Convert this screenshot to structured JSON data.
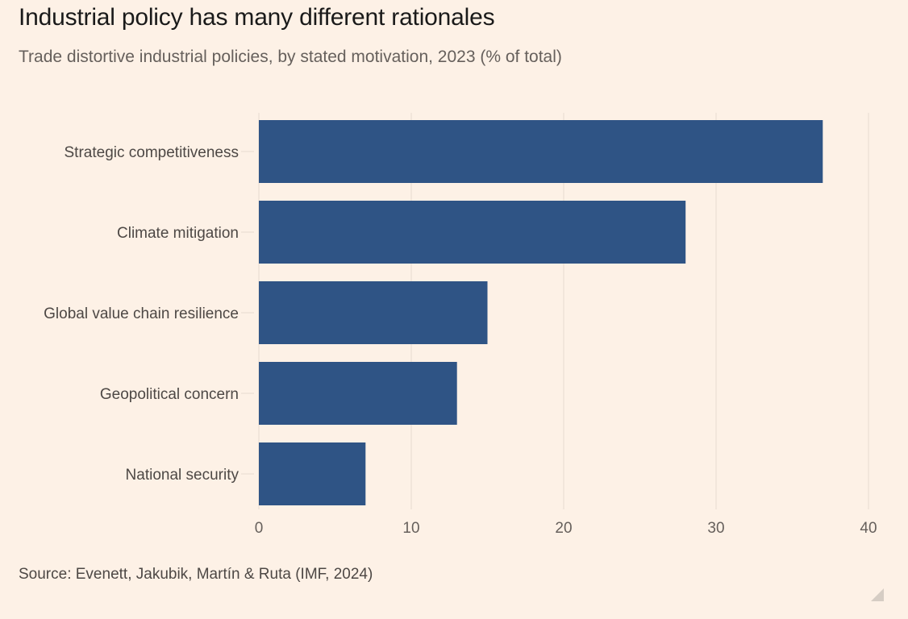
{
  "title": "Industrial policy has many different rationales",
  "subtitle": "Trade distortive industrial policies, by stated motivation, 2023 (% of total)",
  "source": "Source: Evenett, Jakubik, Martín & Ruta (IMF, 2024)",
  "colors": {
    "bar": "#2f5485",
    "grid": "#e6dbd0",
    "background": "#fdf1e6",
    "axis_text": "#66605c"
  },
  "chart_data": {
    "type": "bar",
    "orientation": "horizontal",
    "title": "Industrial policy has many different rationales",
    "subtitle": "Trade distortive industrial policies, by stated motivation, 2023 (% of total)",
    "categories": [
      "Strategic competitiveness",
      "Climate mitigation",
      "Global value chain resilience",
      "Geopolitical concern",
      "National security"
    ],
    "values": [
      37,
      28,
      15,
      13,
      7
    ],
    "xlabel": "",
    "ylabel": "",
    "xlim": [
      0,
      40
    ],
    "xticks": [
      "0",
      "10",
      "20",
      "30",
      "40"
    ],
    "grid": true,
    "legend": "none"
  }
}
